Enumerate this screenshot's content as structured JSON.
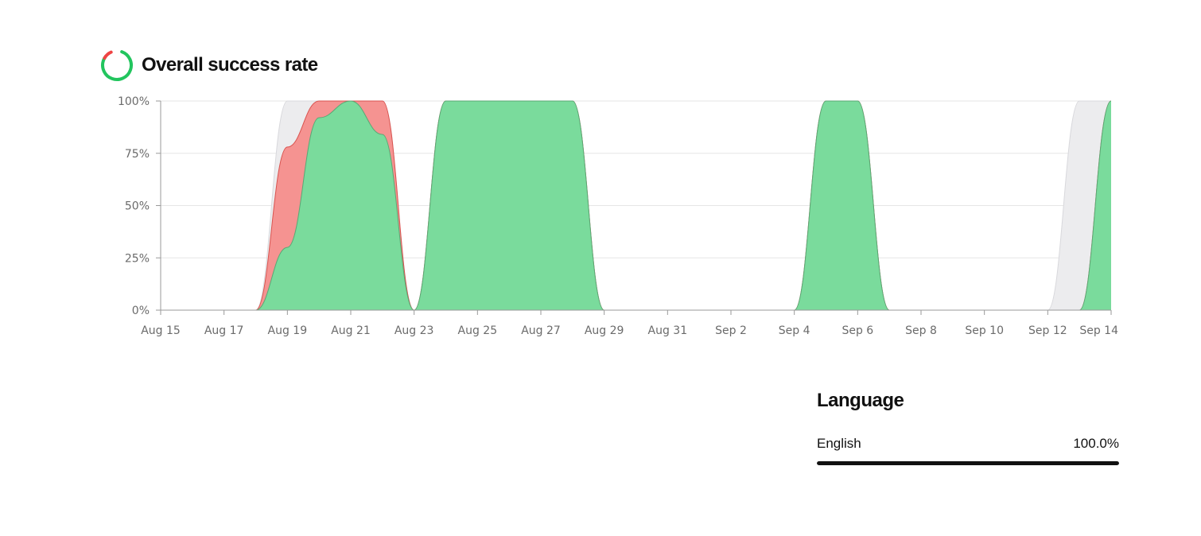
{
  "header": {
    "title": "Overall success rate",
    "icon": "donut-status-icon"
  },
  "colors": {
    "success": "#7adb9c",
    "failure": "#f59391",
    "total": "#ececee",
    "icon_green": "#22c55e",
    "icon_red": "#ef4444"
  },
  "chart_data": {
    "type": "area",
    "title": "Overall success rate",
    "xlabel": "",
    "ylabel": "",
    "ylim": [
      0,
      100
    ],
    "y_ticks": [
      "0%",
      "25%",
      "50%",
      "75%",
      "100%"
    ],
    "x_ticks": [
      "Aug 15",
      "Aug 17",
      "Aug 19",
      "Aug 21",
      "Aug 23",
      "Aug 25",
      "Aug 27",
      "Aug 29",
      "Aug 31",
      "Sep 2",
      "Sep 4",
      "Sep 6",
      "Sep 8",
      "Sep 10",
      "Sep 12",
      "Sep 14"
    ],
    "grid": true,
    "x": [
      "Aug 15",
      "Aug 16",
      "Aug 17",
      "Aug 18",
      "Aug 19",
      "Aug 20",
      "Aug 21",
      "Aug 22",
      "Aug 23",
      "Aug 24",
      "Aug 25",
      "Aug 26",
      "Aug 27",
      "Aug 28",
      "Aug 29",
      "Aug 30",
      "Aug 31",
      "Sep 1",
      "Sep 2",
      "Sep 3",
      "Sep 4",
      "Sep 5",
      "Sep 6",
      "Sep 7",
      "Sep 8",
      "Sep 9",
      "Sep 10",
      "Sep 11",
      "Sep 12",
      "Sep 13",
      "Sep 14"
    ],
    "series": [
      {
        "values": [
          0,
          0,
          0,
          0,
          100,
          100,
          100,
          100,
          0,
          100,
          100,
          100,
          100,
          100,
          0,
          0,
          0,
          0,
          0,
          0,
          0,
          100,
          100,
          0,
          0,
          0,
          0,
          0,
          0,
          100,
          100
        ]
      },
      {
        "values": [
          0,
          0,
          0,
          0,
          78,
          100,
          100,
          100,
          0,
          100,
          100,
          100,
          100,
          100,
          0,
          0,
          0,
          0,
          0,
          0,
          0,
          100,
          100,
          0,
          0,
          0,
          0,
          0,
          0,
          0,
          100
        ]
      },
      {
        "values": [
          0,
          0,
          0,
          0,
          30,
          92,
          100,
          84,
          0,
          100,
          100,
          100,
          100,
          100,
          0,
          0,
          0,
          0,
          0,
          0,
          0,
          100,
          100,
          0,
          0,
          0,
          0,
          0,
          0,
          0,
          100
        ]
      }
    ]
  },
  "language_panel": {
    "title": "Language",
    "items": [
      {
        "label": "English",
        "value": "100.0%",
        "fraction": 1.0
      }
    ]
  }
}
